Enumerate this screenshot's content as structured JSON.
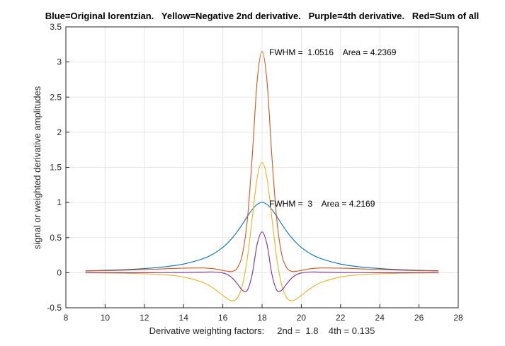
{
  "chart_data": {
    "type": "line",
    "title": "Blue=Original lorentzian.   Yellow=Negative 2nd derivative.   Purple=4th derivative.   Red=Sum of all",
    "x_label": "Derivative weighting factors:     2nd =  1.8    4th = 0.135",
    "y_label": "signal or weighted derivative amplitudes",
    "annotations": [
      "FWHM =  1.0516    Area = 4.2369",
      "FWHM =  3    Area = 4.2169"
    ],
    "x": [
      9,
      10,
      11,
      12,
      13,
      14,
      15,
      15.5,
      16,
      16.25,
      16.5,
      16.75,
      17,
      17.25,
      17.5,
      17.75,
      18,
      18.25,
      18.5,
      18.75,
      19,
      19.25,
      19.5,
      19.75,
      20,
      20.5,
      21,
      22,
      23,
      24,
      25,
      26,
      27
    ],
    "series": [
      {
        "color": "#0072BD",
        "values": [
          0.027,
          0.034,
          0.0439,
          0.0588,
          0.0826,
          0.123,
          0.2,
          0.265,
          0.36,
          0.424,
          0.5,
          0.59,
          0.692,
          0.8,
          0.9,
          0.973,
          1,
          0.973,
          0.9,
          0.8,
          0.692,
          0.59,
          0.5,
          0.424,
          0.36,
          0.265,
          0.2,
          0.123,
          0.0826,
          0.0588,
          0.0439,
          0.034,
          0.027
        ]
      },
      {
        "color": "#EDB120",
        "values": [
          -0.0034,
          -0.0053,
          -0.0087,
          -0.0153,
          -0.029,
          -0.061,
          -0.141,
          -0.218,
          -0.324,
          -0.375,
          -0.4,
          -0.356,
          -0.177,
          0.205,
          0.778,
          1.351,
          1.57,
          1.351,
          0.778,
          0.205,
          -0.177,
          -0.356,
          -0.4,
          -0.375,
          -0.324,
          -0.218,
          -0.141,
          -0.061,
          -0.029,
          -0.0153,
          -0.0087,
          -0.0053,
          -0.0034
        ]
      },
      {
        "color": "#7E2F8E",
        "values": [
          0,
          0.0001,
          0.0003,
          0.0005,
          0.0012,
          0.0033,
          0.0084,
          0.01,
          -0.004,
          -0.029,
          -0.08,
          -0.162,
          -0.25,
          -0.249,
          -0.019,
          0.405,
          0.58,
          0.405,
          -0.019,
          -0.249,
          -0.25,
          -0.162,
          -0.08,
          -0.029,
          -0.004,
          0.01,
          0.0084,
          0.0033,
          0.0012,
          0.0005,
          0.0003,
          0.0001,
          0
        ]
      },
      {
        "color": "#D95319",
        "values": [
          0.0236,
          0.0288,
          0.0355,
          0.044,
          0.055,
          0.065,
          0.067,
          0.057,
          0.032,
          0.02,
          0.02,
          0.072,
          0.265,
          0.756,
          1.659,
          2.729,
          3.15,
          2.729,
          1.659,
          0.756,
          0.265,
          0.072,
          0.02,
          0.02,
          0.032,
          0.057,
          0.067,
          0.065,
          0.055,
          0.044,
          0.0355,
          0.0288,
          0.0236
        ]
      }
    ],
    "xlim": [
      8,
      28
    ],
    "xticks": [
      8,
      10,
      12,
      14,
      16,
      18,
      20,
      22,
      24,
      26,
      28
    ],
    "ylim": [
      -0.5,
      3.5
    ],
    "yticks": [
      -0.5,
      0,
      0.5,
      1,
      1.5,
      2,
      2.5,
      3,
      3.5
    ],
    "grid": true
  }
}
